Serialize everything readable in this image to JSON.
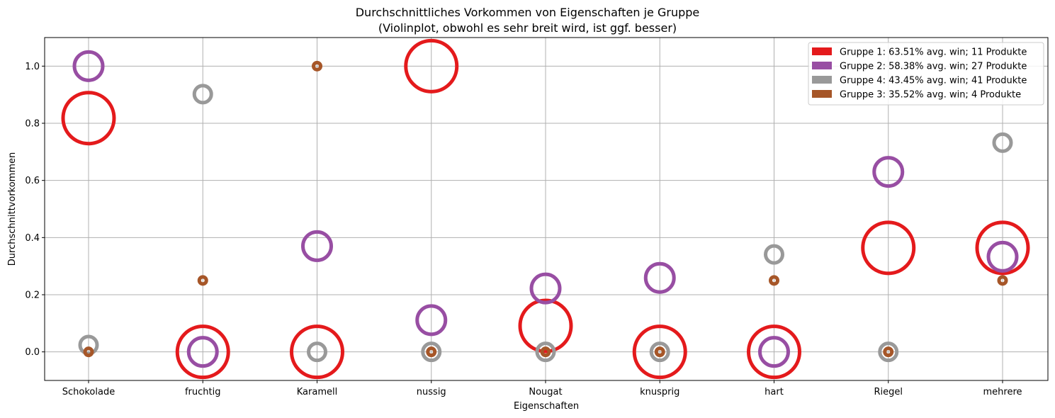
{
  "chart_data": {
    "type": "scatter",
    "title": "Durchschnittliches Vorkommen von Eigenschaften je Gruppe",
    "subtitle": "(Violinplot, obwohl es sehr breit wird, ist ggf. besser)",
    "xlabel": "Eigenschaften",
    "ylabel": "Durchschnittvorkommen",
    "categories": [
      "Schokolade",
      "fruchtig",
      "Karamell",
      "nussig",
      "Nougat",
      "knusprig",
      "hart",
      "Riegel",
      "mehrere"
    ],
    "ylim": [
      -0.1,
      1.1
    ],
    "yticks": [
      "0.0",
      "0.2",
      "0.4",
      "0.6",
      "0.8",
      "1.0"
    ],
    "grid": true,
    "legend_position": "top-right",
    "marker": "hollow circle, size proportional to group size",
    "series": [
      {
        "name": "Gruppe 1: 63.51% avg. win; 11 Produkte",
        "color": "#e41a1c",
        "products": 11,
        "values": [
          0.818,
          0.0,
          0.0,
          1.0,
          0.091,
          0.0,
          0.0,
          0.364,
          0.364
        ]
      },
      {
        "name": "Gruppe 2: 58.38% avg. win; 27 Produkte",
        "color": "#984ea3",
        "products": 27,
        "values": [
          1.0,
          0.0,
          0.37,
          0.111,
          0.222,
          0.259,
          0.0,
          0.63,
          0.333
        ]
      },
      {
        "name": "Gruppe 4: 43.45% avg. win; 41 Produkte",
        "color": "#999999",
        "products": 41,
        "values": [
          0.024,
          0.902,
          0.0,
          0.0,
          0.0,
          0.0,
          0.341,
          0.0,
          0.732
        ]
      },
      {
        "name": "Gruppe 3: 35.52% avg. win; 4 Produkte",
        "color": "#a65628",
        "products": 4,
        "values": [
          0.0,
          0.25,
          1.0,
          0.0,
          0.0,
          0.0,
          0.25,
          0.0,
          0.25
        ]
      }
    ]
  }
}
